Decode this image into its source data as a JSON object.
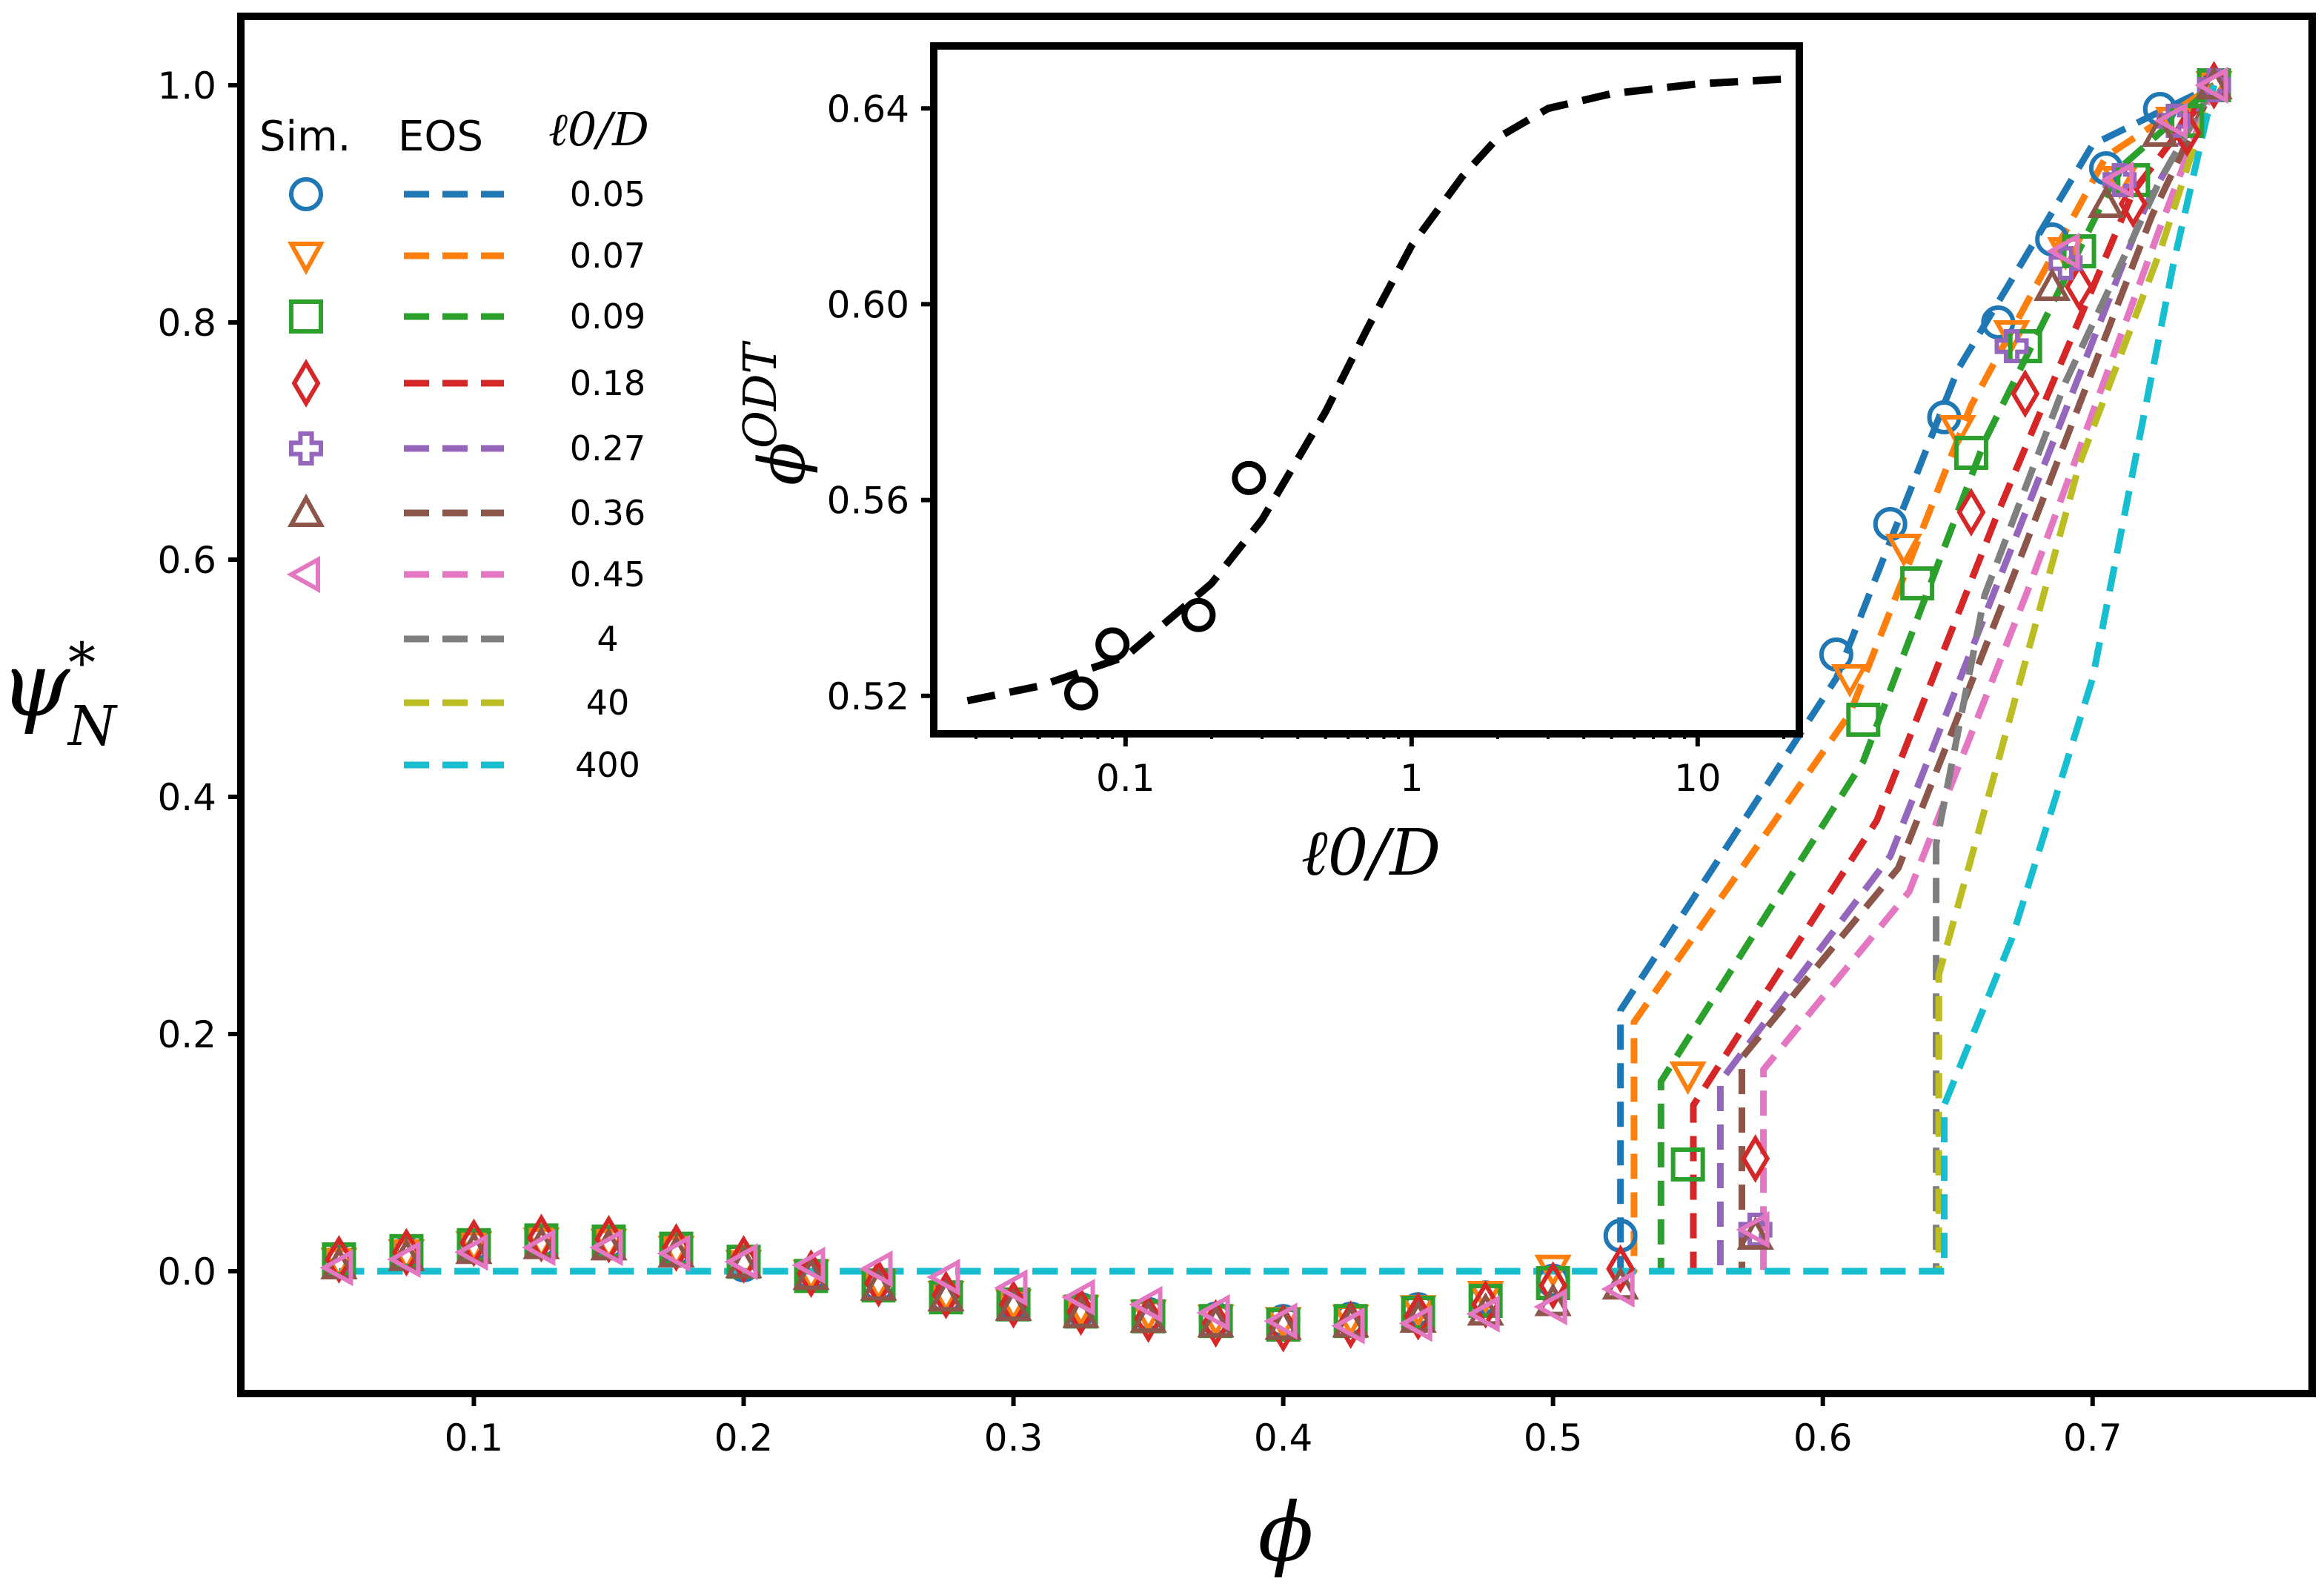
{
  "chart_data": [
    {
      "type": "line",
      "panel": "main",
      "xlabel": "ϕ",
      "ylabel": "ψ",
      "ylabel_sup": "*",
      "ylabel_sub": "N",
      "xlim": [
        0.015,
        0.78
      ],
      "ylim": [
        -0.1,
        1.055
      ],
      "xticks": [
        0.1,
        0.2,
        0.3,
        0.4,
        0.5,
        0.6,
        0.7
      ],
      "xtick_labels": [
        "0.1",
        "0.2",
        "0.3",
        "0.4",
        "0.5",
        "0.6",
        "0.7"
      ],
      "yticks": [
        0.0,
        0.2,
        0.4,
        0.6,
        0.8,
        1.0
      ],
      "ytick_labels": [
        "0.0",
        "0.2",
        "0.4",
        "0.6",
        "0.8",
        "1.0"
      ],
      "legend": {
        "position": "top-left",
        "header_sim": "Sim.",
        "header_eos": "EOS",
        "header_l0": "ℓ0/D"
      },
      "eos_series": [
        {
          "name": "0.05",
          "color": "#1f77b4",
          "x": [
            0.05,
            0.525,
            0.525,
            0.605,
            0.65,
            0.7,
            0.745
          ],
          "y": [
            0.0,
            0.0,
            0.22,
            0.5,
            0.76,
            0.95,
            1.0
          ]
        },
        {
          "name": "0.07",
          "color": "#ff7f0e",
          "x": [
            0.05,
            0.53,
            0.53,
            0.61,
            0.655,
            0.705,
            0.745
          ],
          "y": [
            0.0,
            0.0,
            0.21,
            0.47,
            0.73,
            0.94,
            1.0
          ]
        },
        {
          "name": "0.09",
          "color": "#2ca02c",
          "x": [
            0.05,
            0.54,
            0.54,
            0.615,
            0.66,
            0.71,
            0.745
          ],
          "y": [
            0.0,
            0.0,
            0.16,
            0.43,
            0.7,
            0.93,
            1.0
          ]
        },
        {
          "name": "0.18",
          "color": "#d62728",
          "x": [
            0.05,
            0.552,
            0.552,
            0.62,
            0.665,
            0.715,
            0.745
          ],
          "y": [
            0.0,
            0.0,
            0.14,
            0.38,
            0.64,
            0.91,
            1.0
          ]
        },
        {
          "name": "0.27",
          "color": "#9467bd",
          "x": [
            0.05,
            0.562,
            0.562,
            0.625,
            0.67,
            0.72,
            0.745
          ],
          "y": [
            0.0,
            0.0,
            0.16,
            0.35,
            0.61,
            0.9,
            1.0
          ]
        },
        {
          "name": "0.36",
          "color": "#8c564b",
          "x": [
            0.05,
            0.57,
            0.57,
            0.628,
            0.673,
            0.722,
            0.745
          ],
          "y": [
            0.0,
            0.0,
            0.18,
            0.34,
            0.6,
            0.89,
            1.0
          ]
        },
        {
          "name": "0.45",
          "color": "#e377c2",
          "x": [
            0.05,
            0.578,
            0.578,
            0.632,
            0.677,
            0.725,
            0.745
          ],
          "y": [
            0.0,
            0.0,
            0.17,
            0.32,
            0.58,
            0.88,
            1.0
          ]
        },
        {
          "name": "4",
          "color": "#7f7f7f",
          "x": [
            0.05,
            0.642,
            0.642,
            0.66,
            0.69,
            0.725,
            0.745
          ],
          "y": [
            0.0,
            0.0,
            0.36,
            0.57,
            0.75,
            0.92,
            1.0
          ]
        },
        {
          "name": "40",
          "color": "#bcbd22",
          "x": [
            0.05,
            0.643,
            0.643,
            0.665,
            0.695,
            0.725,
            0.745
          ],
          "y": [
            0.0,
            0.0,
            0.25,
            0.43,
            0.68,
            0.86,
            1.0
          ]
        },
        {
          "name": "400",
          "color": "#17becf",
          "x": [
            0.05,
            0.645,
            0.645,
            0.67,
            0.7,
            0.73,
            0.745
          ],
          "y": [
            0.0,
            0.0,
            0.14,
            0.28,
            0.5,
            0.85,
            1.0
          ]
        }
      ],
      "sim_series": [
        {
          "name": "0.05",
          "marker": "circle",
          "color": "#1f77b4",
          "x": [
            0.05,
            0.075,
            0.1,
            0.125,
            0.15,
            0.175,
            0.2,
            0.225,
            0.25,
            0.275,
            0.3,
            0.325,
            0.35,
            0.375,
            0.4,
            0.425,
            0.45,
            0.475,
            0.5,
            0.525,
            0.605,
            0.625,
            0.645,
            0.665,
            0.685,
            0.705,
            0.725,
            0.745
          ],
          "y": [
            0.008,
            0.015,
            0.022,
            0.025,
            0.024,
            0.018,
            0.005,
            -0.003,
            -0.012,
            -0.022,
            -0.028,
            -0.032,
            -0.036,
            -0.04,
            -0.042,
            -0.04,
            -0.032,
            -0.022,
            -0.008,
            0.03,
            0.52,
            0.63,
            0.72,
            0.8,
            0.87,
            0.93,
            0.98,
            1.0
          ]
        },
        {
          "name": "0.07",
          "marker": "triangle-down",
          "color": "#ff7f0e",
          "x": [
            0.05,
            0.075,
            0.1,
            0.125,
            0.15,
            0.175,
            0.2,
            0.225,
            0.25,
            0.275,
            0.3,
            0.325,
            0.35,
            0.375,
            0.4,
            0.425,
            0.45,
            0.475,
            0.5,
            0.55,
            0.61,
            0.63,
            0.65,
            0.67,
            0.69,
            0.71,
            0.73,
            0.745
          ],
          "y": [
            0.008,
            0.015,
            0.022,
            0.025,
            0.024,
            0.018,
            0.006,
            -0.002,
            -0.01,
            -0.02,
            -0.027,
            -0.032,
            -0.036,
            -0.04,
            -0.042,
            -0.04,
            -0.032,
            -0.02,
            0.002,
            0.165,
            0.5,
            0.61,
            0.71,
            0.79,
            0.86,
            0.92,
            0.97,
            1.0
          ]
        },
        {
          "name": "0.09",
          "marker": "square",
          "color": "#2ca02c",
          "x": [
            0.05,
            0.075,
            0.1,
            0.125,
            0.15,
            0.175,
            0.2,
            0.225,
            0.25,
            0.275,
            0.3,
            0.325,
            0.35,
            0.375,
            0.4,
            0.425,
            0.45,
            0.475,
            0.5,
            0.55,
            0.615,
            0.635,
            0.655,
            0.675,
            0.695,
            0.715,
            0.735,
            0.745
          ],
          "y": [
            0.01,
            0.017,
            0.022,
            0.026,
            0.025,
            0.019,
            0.008,
            -0.004,
            -0.012,
            -0.022,
            -0.028,
            -0.034,
            -0.038,
            -0.042,
            -0.045,
            -0.042,
            -0.035,
            -0.025,
            -0.01,
            0.09,
            0.465,
            0.58,
            0.69,
            0.78,
            0.86,
            0.92,
            0.97,
            1.0
          ]
        },
        {
          "name": "0.18",
          "marker": "diamond",
          "color": "#d62728",
          "x": [
            0.05,
            0.075,
            0.1,
            0.125,
            0.15,
            0.175,
            0.2,
            0.225,
            0.25,
            0.275,
            0.3,
            0.325,
            0.35,
            0.375,
            0.4,
            0.425,
            0.45,
            0.475,
            0.5,
            0.525,
            0.575,
            0.655,
            0.675,
            0.695,
            0.715,
            0.735,
            0.745
          ],
          "y": [
            0.01,
            0.016,
            0.024,
            0.028,
            0.027,
            0.02,
            0.01,
            -0.002,
            -0.01,
            -0.02,
            -0.028,
            -0.034,
            -0.04,
            -0.044,
            -0.048,
            -0.045,
            -0.038,
            -0.028,
            -0.012,
            0.002,
            0.095,
            0.64,
            0.74,
            0.83,
            0.9,
            0.96,
            1.0
          ]
        },
        {
          "name": "0.27",
          "marker": "plus",
          "color": "#9467bd",
          "x": [
            0.575,
            0.67,
            0.69,
            0.71,
            0.73,
            0.745
          ],
          "y": [
            0.035,
            0.78,
            0.85,
            0.92,
            0.97,
            1.0
          ]
        },
        {
          "name": "0.36",
          "marker": "triangle-up",
          "color": "#8c564b",
          "x": [
            0.05,
            0.075,
            0.1,
            0.125,
            0.15,
            0.175,
            0.2,
            0.225,
            0.25,
            0.275,
            0.3,
            0.325,
            0.35,
            0.375,
            0.4,
            0.425,
            0.45,
            0.475,
            0.5,
            0.525,
            0.575,
            0.685,
            0.705,
            0.725,
            0.745
          ],
          "y": [
            0.005,
            0.012,
            0.018,
            0.022,
            0.021,
            0.015,
            0.006,
            -0.004,
            -0.013,
            -0.022,
            -0.03,
            -0.036,
            -0.04,
            -0.044,
            -0.046,
            -0.044,
            -0.04,
            -0.034,
            -0.026,
            -0.012,
            0.03,
            0.83,
            0.9,
            0.96,
            1.0
          ]
        },
        {
          "name": "0.45",
          "marker": "triangle-left",
          "color": "#e377c2",
          "x": [
            0.05,
            0.075,
            0.1,
            0.125,
            0.15,
            0.175,
            0.2,
            0.225,
            0.25,
            0.275,
            0.3,
            0.325,
            0.35,
            0.375,
            0.4,
            0.425,
            0.45,
            0.475,
            0.5,
            0.525,
            0.575,
            0.69,
            0.71,
            0.73,
            0.745
          ],
          "y": [
            0.003,
            0.01,
            0.016,
            0.02,
            0.02,
            0.015,
            0.008,
            0.005,
            0.002,
            -0.005,
            -0.014,
            -0.022,
            -0.028,
            -0.035,
            -0.042,
            -0.046,
            -0.044,
            -0.036,
            -0.03,
            -0.015,
            0.035,
            0.86,
            0.92,
            0.97,
            1.0
          ]
        }
      ]
    },
    {
      "type": "line",
      "panel": "inset",
      "xscale": "log",
      "xlabel": "ℓ0/D",
      "ylabel": "ϕ",
      "ylabel_sup": "ODT",
      "xlim": [
        0.022,
        22
      ],
      "ylim": [
        0.513,
        0.652
      ],
      "xticks": [
        0.1,
        1,
        10
      ],
      "xtick_labels": [
        "0.1",
        "1",
        "10"
      ],
      "yticks": [
        0.52,
        0.56,
        0.6,
        0.64
      ],
      "ytick_labels": [
        "0.52",
        "0.56",
        "0.60",
        "0.64"
      ],
      "curve": {
        "name": "EOS",
        "x": [
          0.028,
          0.05,
          0.1,
          0.2,
          0.3,
          0.5,
          0.7,
          1.0,
          1.5,
          2.0,
          3.0,
          5.0,
          10.0,
          20.0
        ],
        "y": [
          0.519,
          0.522,
          0.528,
          0.543,
          0.556,
          0.578,
          0.595,
          0.612,
          0.626,
          0.634,
          0.64,
          0.643,
          0.645,
          0.646
        ]
      },
      "points": {
        "name": "Sim.",
        "x": [
          0.07,
          0.09,
          0.18,
          0.27
        ],
        "y": [
          0.5205,
          0.5305,
          0.5365,
          0.5645
        ]
      }
    }
  ]
}
